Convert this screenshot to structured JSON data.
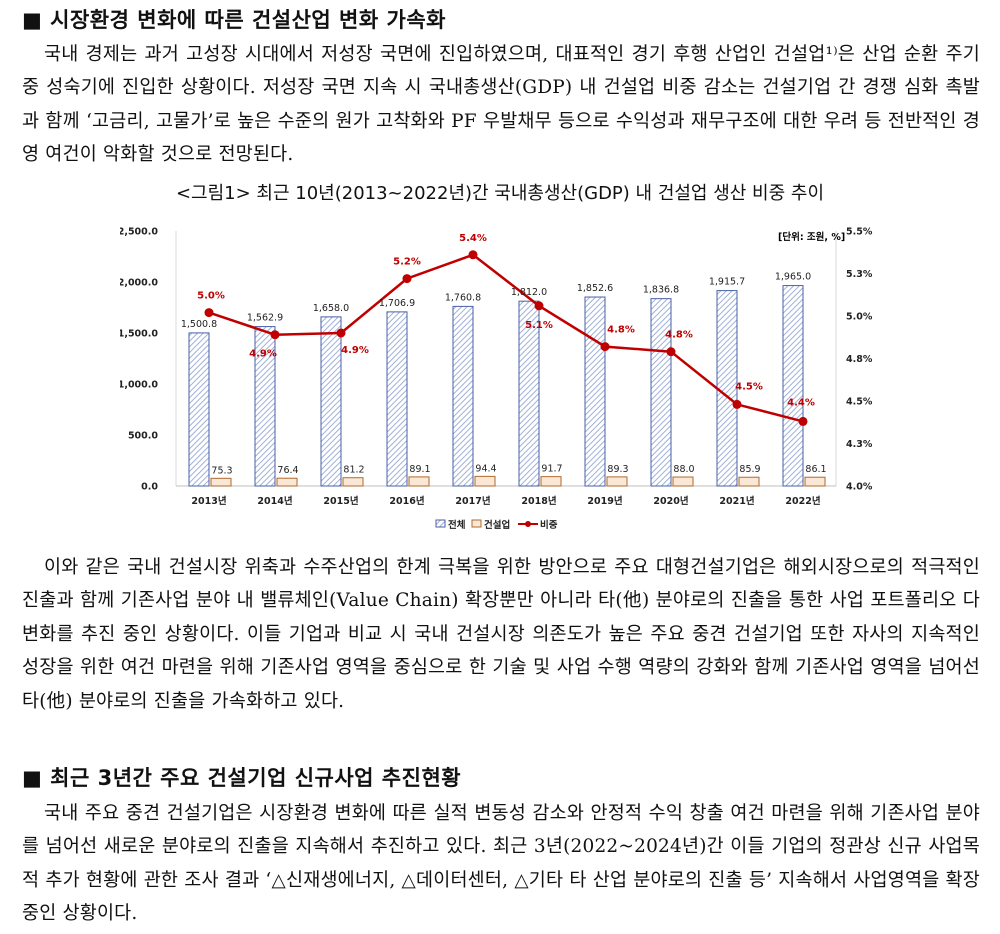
{
  "section1": {
    "title": "■ 시장환경 변화에 따른 건설산업 변화 가속화",
    "para1": "국내 경제는 과거 고성장 시대에서 저성장 국면에 진입하였으며, 대표적인 경기 후행 산업인 건설업¹⁾은 산업 순환 주기 중 성숙기에 진입한 상황이다. 저성장 국면 지속 시 국내총생산(GDP) 내 건설업 비중 감소는 건설기업 간 경쟁 심화 촉발과 함께 ‘고금리, 고물가’로 높은 수준의 원가 고착화와 PF 우발채무 등으로 수익성과 재무구조에 대한 우려 등 전반적인 경영 여건이 악화할 것으로 전망된다.",
    "para2": "이와 같은 국내 건설시장 위축과 수주산업의 한계 극복을 위한 방안으로 주요 대형건설기업은 해외시장으로의 적극적인 진출과 함께 기존사업 분야 내 밸류체인(Value Chain) 확장뿐만 아니라 타(他) 분야로의 진출을 통한 사업 포트폴리오 다변화를 추진 중인 상황이다. 이들 기업과 비교 시 국내 건설시장 의존도가 높은 주요 중견 건설기업 또한 자사의 지속적인 성장을 위한 여건 마련을 위해 기존사업 영역을 중심으로 한 기술 및 사업 수행 역량의 강화와 함께 기존사업 영역을 넘어선 타(他) 분야로의 진출을 가속화하고 있다."
  },
  "figure": {
    "caption": "<그림1> 최근 10년(2013~2022년)간 국내총생산(GDP) 내 건설업 생산 비중 추이",
    "unit": "[단위: 조원, %]"
  },
  "chart_data": {
    "type": "bar",
    "categories": [
      "2013년",
      "2014년",
      "2015년",
      "2016년",
      "2017년",
      "2018년",
      "2019년",
      "2020년",
      "2021년",
      "2022년"
    ],
    "series": [
      {
        "name": "전체",
        "type": "bar",
        "axis": "left",
        "values": [
          1500.8,
          1562.9,
          1658.0,
          1706.9,
          1760.8,
          1812.0,
          1852.6,
          1836.8,
          1915.7,
          1965.0
        ],
        "labels": [
          "1,500.8",
          "1,562.9",
          "1,658.0",
          "1,706.9",
          "1,760.8",
          "1,812.0",
          "1,852.6",
          "1,836.8",
          "1,915.7",
          "1,965.0"
        ]
      },
      {
        "name": "건설업",
        "type": "bar",
        "axis": "left",
        "values": [
          75.3,
          76.4,
          81.2,
          89.1,
          94.4,
          91.7,
          89.3,
          88.0,
          85.9,
          86.1
        ],
        "labels": [
          "75.3",
          "76.4",
          "81.2",
          "89.1",
          "94.4",
          "91.7",
          "89.3",
          "88.0",
          "85.9",
          "86.1"
        ]
      },
      {
        "name": "비중",
        "type": "line",
        "axis": "right",
        "values": [
          5.02,
          4.89,
          4.9,
          5.22,
          5.36,
          5.06,
          4.82,
          4.79,
          4.48,
          4.38
        ],
        "labels": [
          "5.0%",
          "4.9%",
          "4.9%",
          "5.2%",
          "5.4%",
          "5.1%",
          "4.8%",
          "4.8%",
          "4.5%",
          "4.4%"
        ]
      }
    ],
    "ylim_left": [
      0,
      2500
    ],
    "yticks_left": [
      "0.0",
      "500.0",
      "1,000.0",
      "1,500.0",
      "2,000.0",
      "2,500.0"
    ],
    "ylim_right": [
      4.0,
      5.5
    ],
    "yticks_right": [
      "4.0%",
      "4.3%",
      "4.5%",
      "4.8%",
      "5.0%",
      "5.3%",
      "5.5%"
    ],
    "legend_position": "bottom",
    "colors": {
      "total_bar_border": "#4a5fa8",
      "total_bar_hatch": "#9fb0d8",
      "construction_bar": "#e0a878",
      "construction_bar_border": "#b06a2c",
      "line": "#c00000"
    }
  },
  "section2": {
    "title": "■ 최근 3년간 주요 건설기업 신규사업 추진현황",
    "para1": "국내 주요 중견 건설기업은 시장환경 변화에 따른 실적 변동성 감소와 안정적 수익 창출 여건 마련을 위해 기존사업 분야를 넘어선 새로운 분야로의 진출을 지속해서 추진하고 있다. 최근 3년(2022~2024년)간 이들 기업의 정관상 신규 사업목적 추가 현황에 관한 조사 결과 ‘△신재생에너지, △데이터센터, △기타 타 산업 분야로의 진출 등’ 지속해서 사업영역을 확장 중인 상황이다."
  }
}
